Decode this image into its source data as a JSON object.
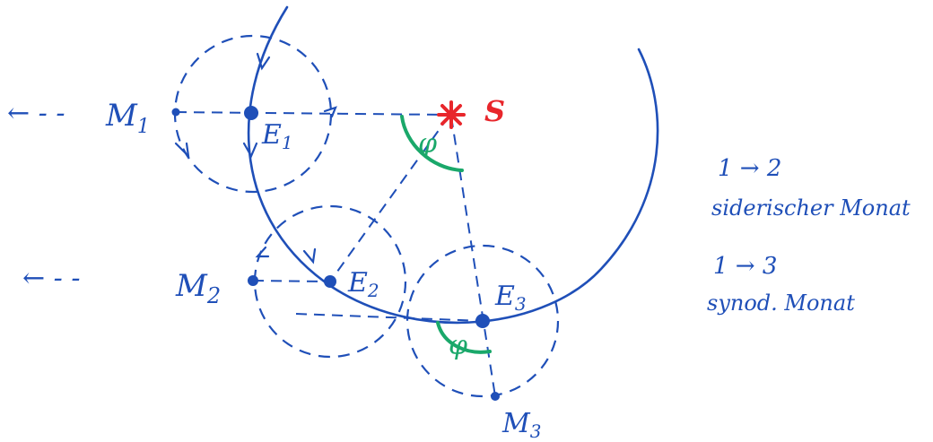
{
  "diagram": {
    "colors": {
      "ink": "#1f4fb8",
      "sun": "#e8262b",
      "angle": "#1aa86a",
      "paper": "#ffffff"
    },
    "labels": {
      "sun": "S",
      "earth_1": "E",
      "earth_1_sub": "1",
      "earth_2": "E",
      "earth_2_sub": "2",
      "earth_3": "E",
      "earth_3_sub": "3",
      "moon_1": "M",
      "moon_1_sub": "1",
      "moon_2": "M",
      "moon_2_sub": "2",
      "moon_3": "M",
      "moon_3_sub": "3",
      "angle_top": "φ",
      "angle_bottom": "φ"
    },
    "legend": {
      "line1": "1 → 2",
      "line2": "siderischer Monat",
      "line3": "1 → 3",
      "line4": "synod. Monat"
    },
    "arrows": {
      "left_1": "← - -",
      "left_2": "← - -"
    }
  }
}
